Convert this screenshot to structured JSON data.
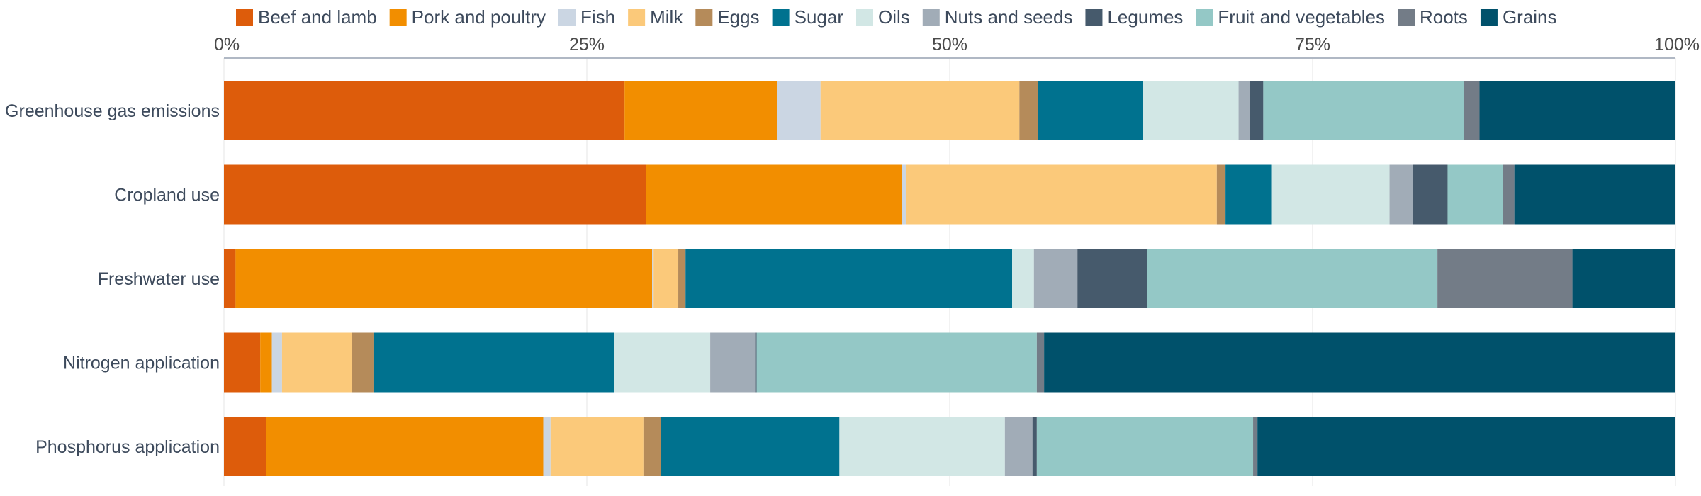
{
  "chart_data": {
    "type": "bar",
    "orientation": "horizontal",
    "stacked": true,
    "title": "",
    "xlabel": "",
    "ylabel": "",
    "xlim": [
      0,
      100
    ],
    "x_ticks": [
      "0%",
      "25%",
      "50%",
      "75%",
      "100%"
    ],
    "x_tick_values": [
      0,
      25,
      50,
      75,
      100
    ],
    "grid": true,
    "legend_position": "top",
    "categories": [
      "Greenhouse gas emissions",
      "Cropland use",
      "Freshwater use",
      "Nitrogen application",
      "Phosphorus application"
    ],
    "series": [
      {
        "name": "Beef and lamb",
        "color": "#dd5c0b",
        "values": [
          27.6,
          29.1,
          0.8,
          2.5,
          2.9
        ]
      },
      {
        "name": "Pork and poultry",
        "color": "#f28e00",
        "values": [
          10.5,
          17.6,
          28.7,
          0.8,
          19.1
        ]
      },
      {
        "name": "Fish",
        "color": "#cbd6e3",
        "values": [
          3.0,
          0.3,
          0.1,
          0.7,
          0.5
        ]
      },
      {
        "name": "Milk",
        "color": "#fbc97a",
        "values": [
          13.7,
          21.4,
          1.7,
          4.8,
          6.4
        ]
      },
      {
        "name": "Eggs",
        "color": "#b58b5a",
        "values": [
          1.3,
          0.6,
          0.5,
          1.5,
          1.2
        ]
      },
      {
        "name": "Sugar",
        "color": "#00728f",
        "values": [
          7.2,
          3.2,
          22.5,
          16.6,
          12.3
        ]
      },
      {
        "name": "Oils",
        "color": "#d2e7e5",
        "values": [
          6.6,
          8.1,
          1.5,
          6.6,
          11.4
        ]
      },
      {
        "name": "Nuts and seeds",
        "color": "#a1acb7",
        "values": [
          0.8,
          1.6,
          3.0,
          3.1,
          1.9
        ]
      },
      {
        "name": "Legumes",
        "color": "#465a6c",
        "values": [
          0.9,
          2.4,
          4.8,
          0.1,
          0.3
        ]
      },
      {
        "name": "Fruit and vegetables",
        "color": "#94c8c6",
        "values": [
          13.8,
          3.8,
          20.0,
          19.3,
          14.9
        ]
      },
      {
        "name": "Roots",
        "color": "#737c87",
        "values": [
          1.1,
          0.8,
          9.3,
          0.5,
          0.3
        ]
      },
      {
        "name": "Grains",
        "color": "#00516b",
        "values": [
          13.5,
          11.1,
          7.1,
          43.5,
          28.8
        ]
      }
    ]
  }
}
